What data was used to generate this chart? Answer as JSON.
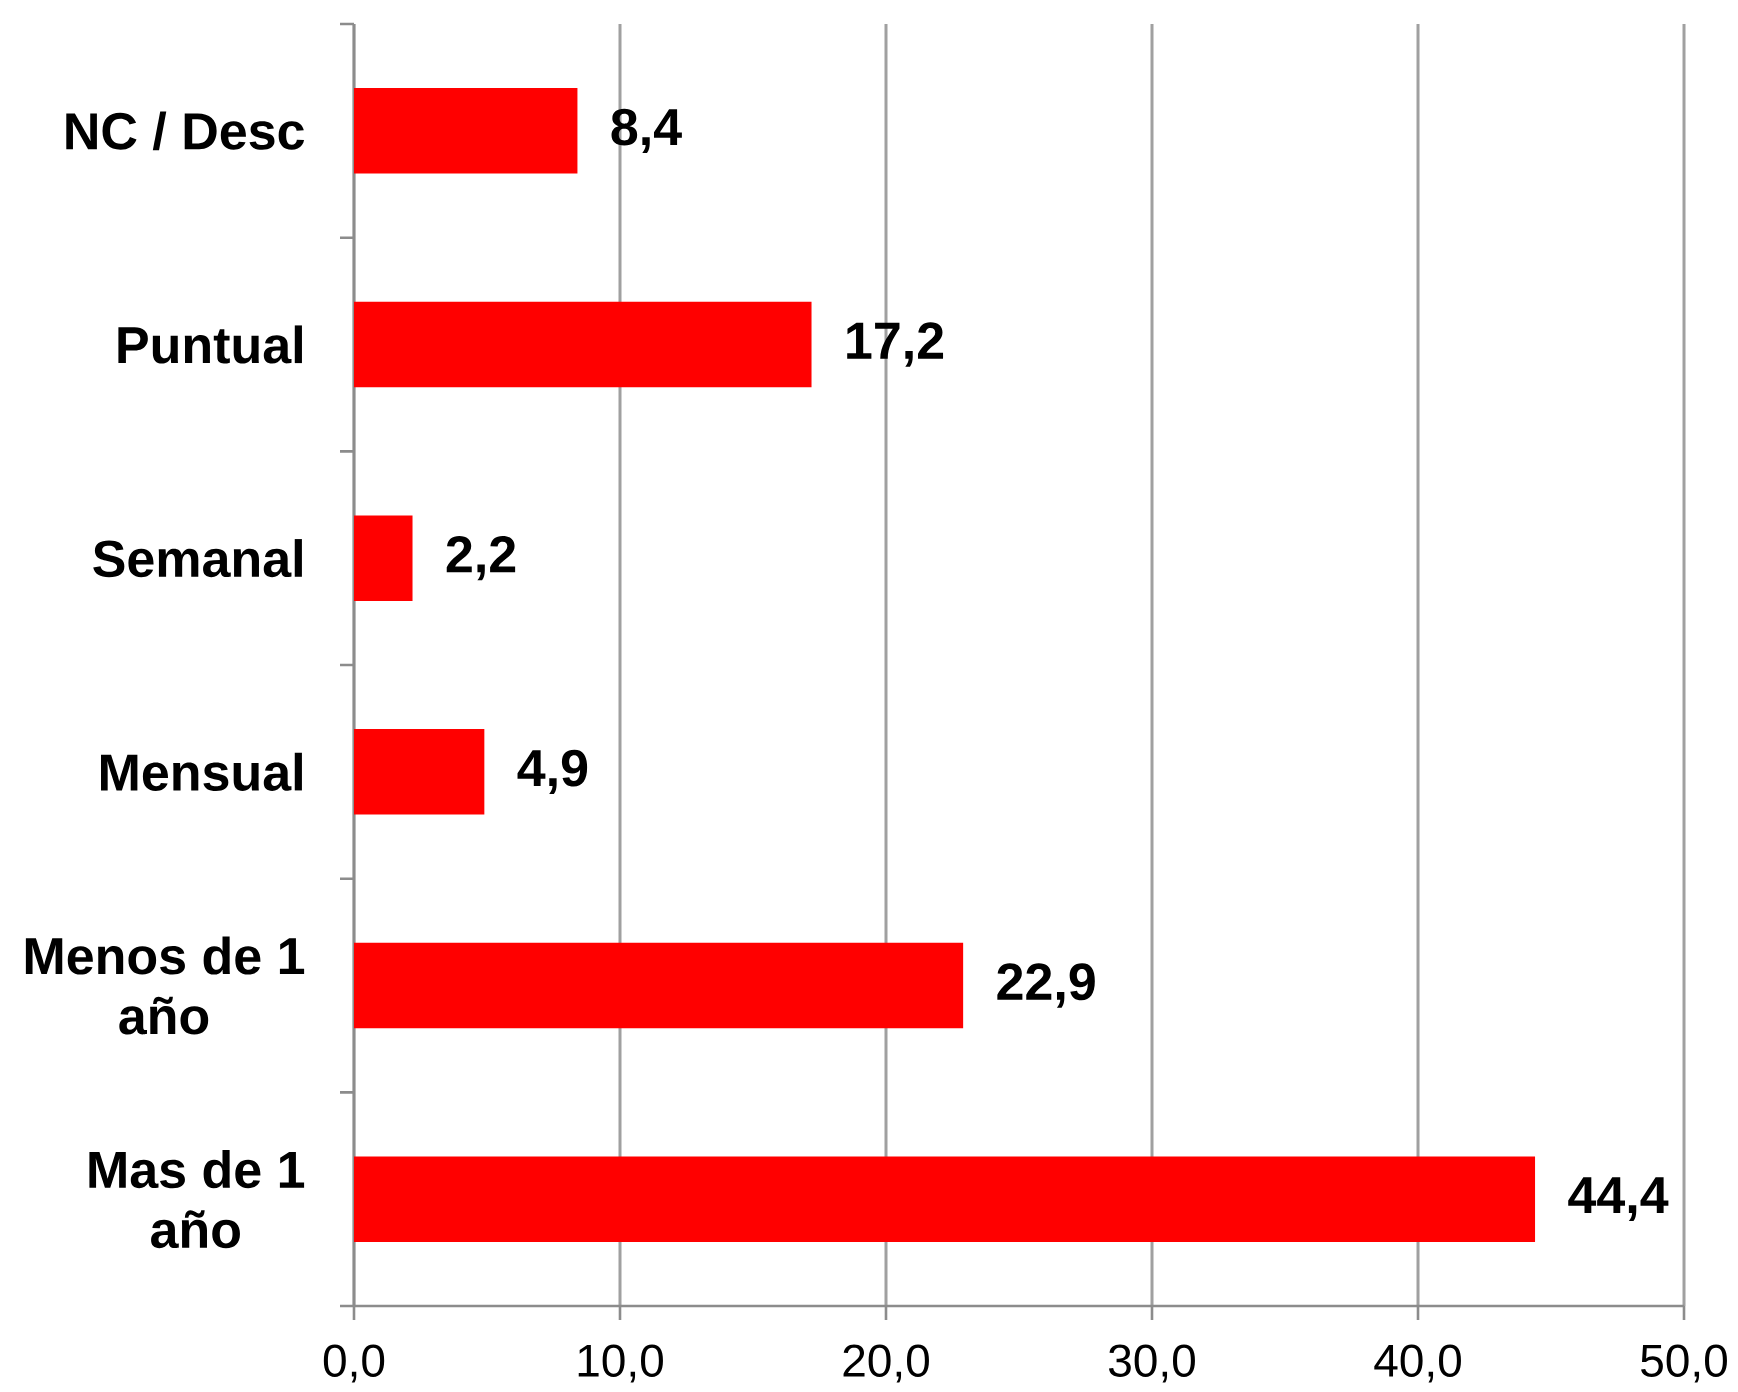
{
  "chart_data": {
    "type": "bar",
    "orientation": "horizontal",
    "categories": [
      "NC / Desc",
      "Puntual",
      "Semanal",
      "Mensual",
      "Menos de 1 año",
      "Mas de 1 año"
    ],
    "values": [
      8.4,
      17.2,
      2.2,
      4.9,
      22.9,
      44.4
    ],
    "value_labels": [
      "8,4",
      "17,2",
      "2,2",
      "4,9",
      "22,9",
      "44,4"
    ],
    "color": "#ff0000",
    "xlim": [
      0,
      50
    ],
    "xticks": [
      {
        "value": 0,
        "label": "0,0"
      },
      {
        "value": 10,
        "label": "10,0"
      },
      {
        "value": 20,
        "label": "20,0"
      },
      {
        "value": 30,
        "label": "30,0"
      },
      {
        "value": 40,
        "label": "40,0"
      },
      {
        "value": 50,
        "label": "50,0"
      }
    ],
    "grid": "x"
  }
}
